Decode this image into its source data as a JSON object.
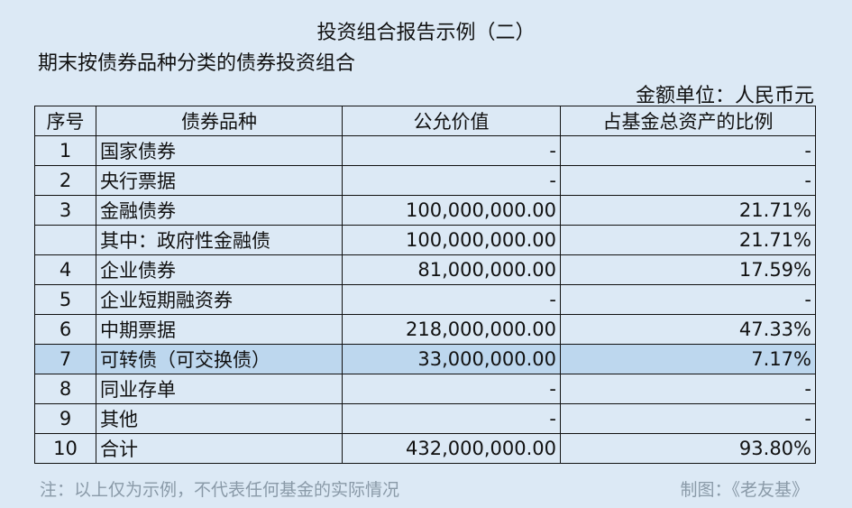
{
  "title": "投资组合报告示例（二）",
  "subtitle": "期末按债券品种分类的债券投资组合",
  "unit": "金额单位：人民币元",
  "headers": [
    "序号",
    "债券品种",
    "公允价值",
    "占基金总资产的比例"
  ],
  "rows": [
    {
      "no": "1",
      "name": "国家债券",
      "value": "-",
      "pct": "-"
    },
    {
      "no": "2",
      "name": "央行票据",
      "value": "-",
      "pct": "-"
    },
    {
      "no": "3",
      "name": "金融债券",
      "value": "100,000,000.00",
      "pct": "21.71%"
    },
    {
      "no": "",
      "name": "其中：政府性金融债",
      "value": "100,000,000.00",
      "pct": "21.71%"
    },
    {
      "no": "4",
      "name": "企业债券",
      "value": "81,000,000.00",
      "pct": "17.59%"
    },
    {
      "no": "5",
      "name": "企业短期融资券",
      "value": "-",
      "pct": "-"
    },
    {
      "no": "6",
      "name": "中期票据",
      "value": "218,000,000.00",
      "pct": "47.33%"
    },
    {
      "no": "7",
      "name": "可转债（可交换债）",
      "value": "33,000,000.00",
      "pct": "7.17%",
      "highlight": true
    },
    {
      "no": "8",
      "name": "同业存单",
      "value": "-",
      "pct": "-"
    },
    {
      "no": "9",
      "name": "其他",
      "value": "-",
      "pct": "-"
    },
    {
      "no": "10",
      "name": "合计",
      "value": "432,000,000.00",
      "pct": "93.80%"
    }
  ],
  "note": "注：以上仅为示例，不代表任何基金的实际情况",
  "credit": "制图：《老友基》",
  "colors": {
    "background": "#dce9f5",
    "highlight": "#bdd7ee",
    "footer_text": "#8a9aa8"
  }
}
